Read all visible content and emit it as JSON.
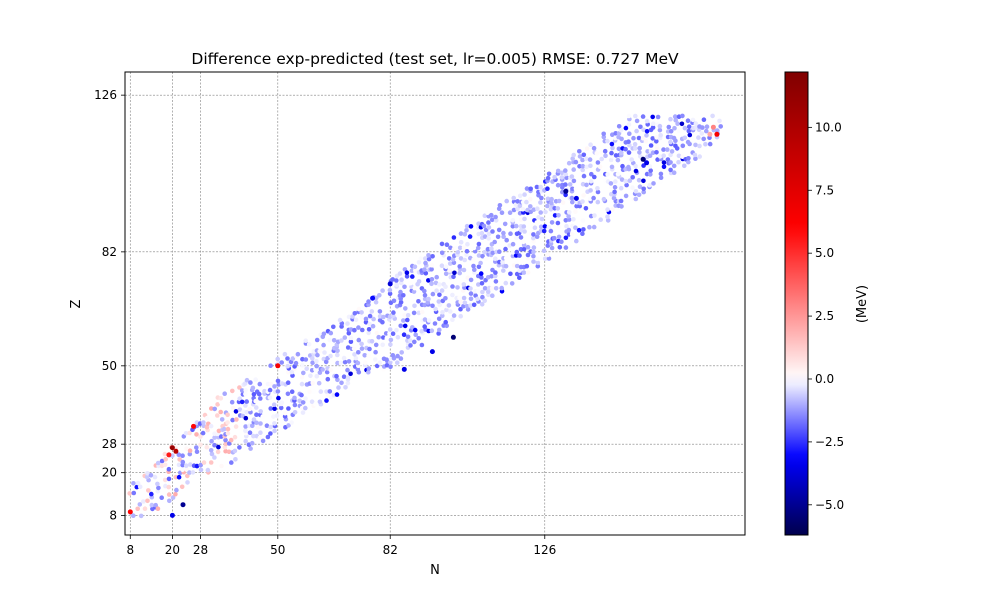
{
  "chart_data": {
    "type": "scatter",
    "title": "Difference exp-predicted (test set, lr=0.005)  RMSE: 0.727 MeV",
    "xlabel": "N",
    "ylabel": "Z",
    "xlim": [
      6.5,
      183
    ],
    "ylim": [
      2.5,
      132.5
    ],
    "x_ticks": [
      8,
      20,
      28,
      50,
      82,
      126
    ],
    "y_ticks": [
      8,
      20,
      28,
      50,
      82,
      126
    ],
    "x_tick_labels": [
      "8",
      "20",
      "28",
      "50",
      "82",
      "126"
    ],
    "y_tick_labels": [
      "8",
      "20",
      "28",
      "50",
      "82",
      "126"
    ],
    "grid": "dashed lines at magic numbers",
    "colorbar": {
      "label": "(MeV)",
      "vmin": -6.2,
      "vmax": 12.2,
      "colormap": "seismic",
      "ticks": [
        10.0,
        7.5,
        5.0,
        2.5,
        0.0,
        -2.5,
        -5.0
      ],
      "tick_labels": [
        "10.0",
        "7.5",
        "5.0",
        "2.5",
        "0.0",
        "−2.5",
        "−5.0"
      ]
    },
    "notable_points": [
      {
        "x": 8,
        "y": 9,
        "value": 6.0
      },
      {
        "x": 20,
        "y": 27,
        "value": 11.0
      },
      {
        "x": 21,
        "y": 26,
        "value": 9.5
      },
      {
        "x": 19,
        "y": 25,
        "value": 5.5
      },
      {
        "x": 26,
        "y": 33,
        "value": 6.0
      },
      {
        "x": 50,
        "y": 50,
        "value": 6.5
      },
      {
        "x": 23,
        "y": 11,
        "value": -5.0
      },
      {
        "x": 20,
        "y": 8,
        "value": -3.5
      },
      {
        "x": 82,
        "y": 73,
        "value": -3.8
      },
      {
        "x": 77,
        "y": 69,
        "value": -3.0
      },
      {
        "x": 100,
        "y": 58,
        "value": -5.5
      },
      {
        "x": 94,
        "y": 54,
        "value": -3.5
      },
      {
        "x": 86,
        "y": 49,
        "value": -3.5
      },
      {
        "x": 135,
        "y": 97,
        "value": -3.5
      },
      {
        "x": 132,
        "y": 99,
        "value": -5.0
      },
      {
        "x": 154,
        "y": 108,
        "value": -5.5
      },
      {
        "x": 155,
        "y": 107,
        "value": -3.5
      },
      {
        "x": 175,
        "y": 115,
        "value": 6.5
      },
      {
        "x": 174,
        "y": 117,
        "value": 3.0
      },
      {
        "x": 173,
        "y": 115,
        "value": 2.0
      }
    ],
    "bulk_points": {
      "description": "test-set nuclei spread along the valley of stability, mostly small negative residuals",
      "n_min": 8,
      "n_max": 176,
      "typical_value_range": [
        -2.0,
        1.0
      ]
    }
  }
}
